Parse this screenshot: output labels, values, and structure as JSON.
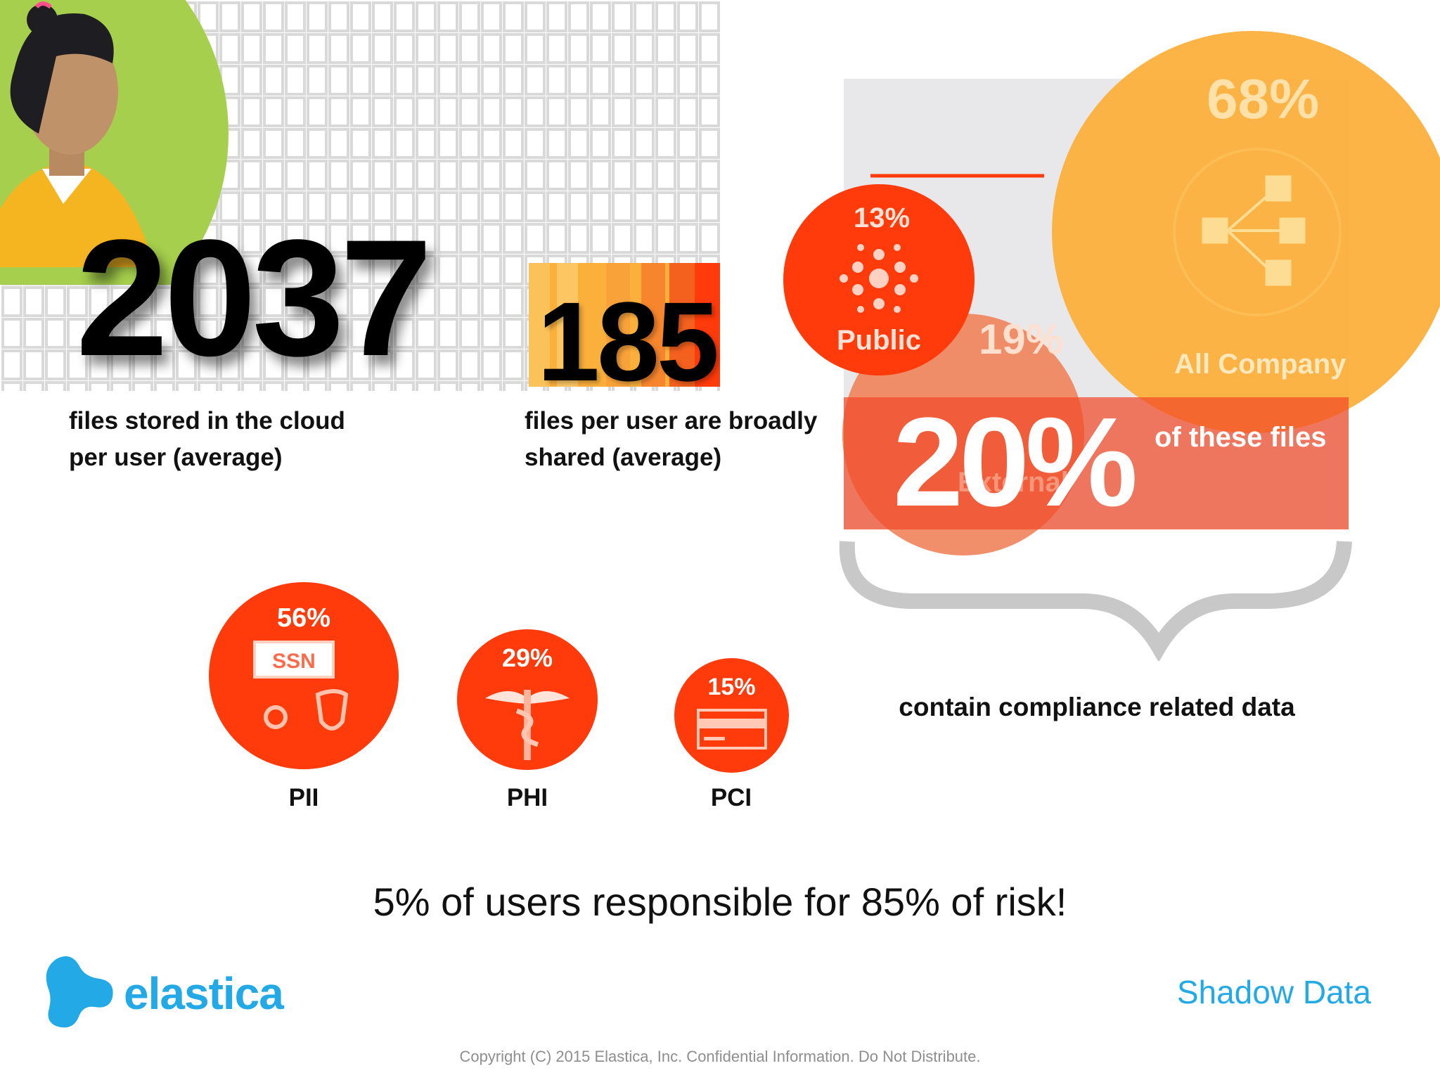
{
  "stats": [
    {
      "value": "2037",
      "description": "files stored in the cloud per user (average)"
    },
    {
      "value": "185",
      "description": "files per user are broadly shared (average)"
    }
  ],
  "sharing": {
    "all_company": {
      "percent": "68%",
      "label": "All Company",
      "icon": "share-icon"
    },
    "public": {
      "percent": "13%",
      "label": "Public",
      "icon": "globe-dots-icon"
    },
    "external": {
      "percent": "19%",
      "label": "External",
      "icon": "external-share-icon"
    },
    "compliance_share": {
      "percent": "20%",
      "label": "of these files"
    }
  },
  "compliance_label": "contain compliance related data",
  "compliance": [
    {
      "percent": "56%",
      "label": "PII",
      "icon": "ssn-card-icon"
    },
    {
      "percent": "29%",
      "label": "PHI",
      "icon": "caduceus-icon"
    },
    {
      "percent": "15%",
      "label": "PCI",
      "icon": "credit-card-icon"
    }
  ],
  "ssn_text": "SSN",
  "tagline": "5% of users responsible for 85% of risk!",
  "brand": {
    "name": "elastica",
    "color": "#22a9e6"
  },
  "section_title": "Shadow Data",
  "copyright": "Copyright (C) 2015 Elastica, Inc.  Confidential Information.  Do Not Distribute.",
  "colors": {
    "accent_red": "#ff3a0b",
    "accent_orange": "#fbb03b",
    "avatar_green": "#a5cf4c"
  }
}
